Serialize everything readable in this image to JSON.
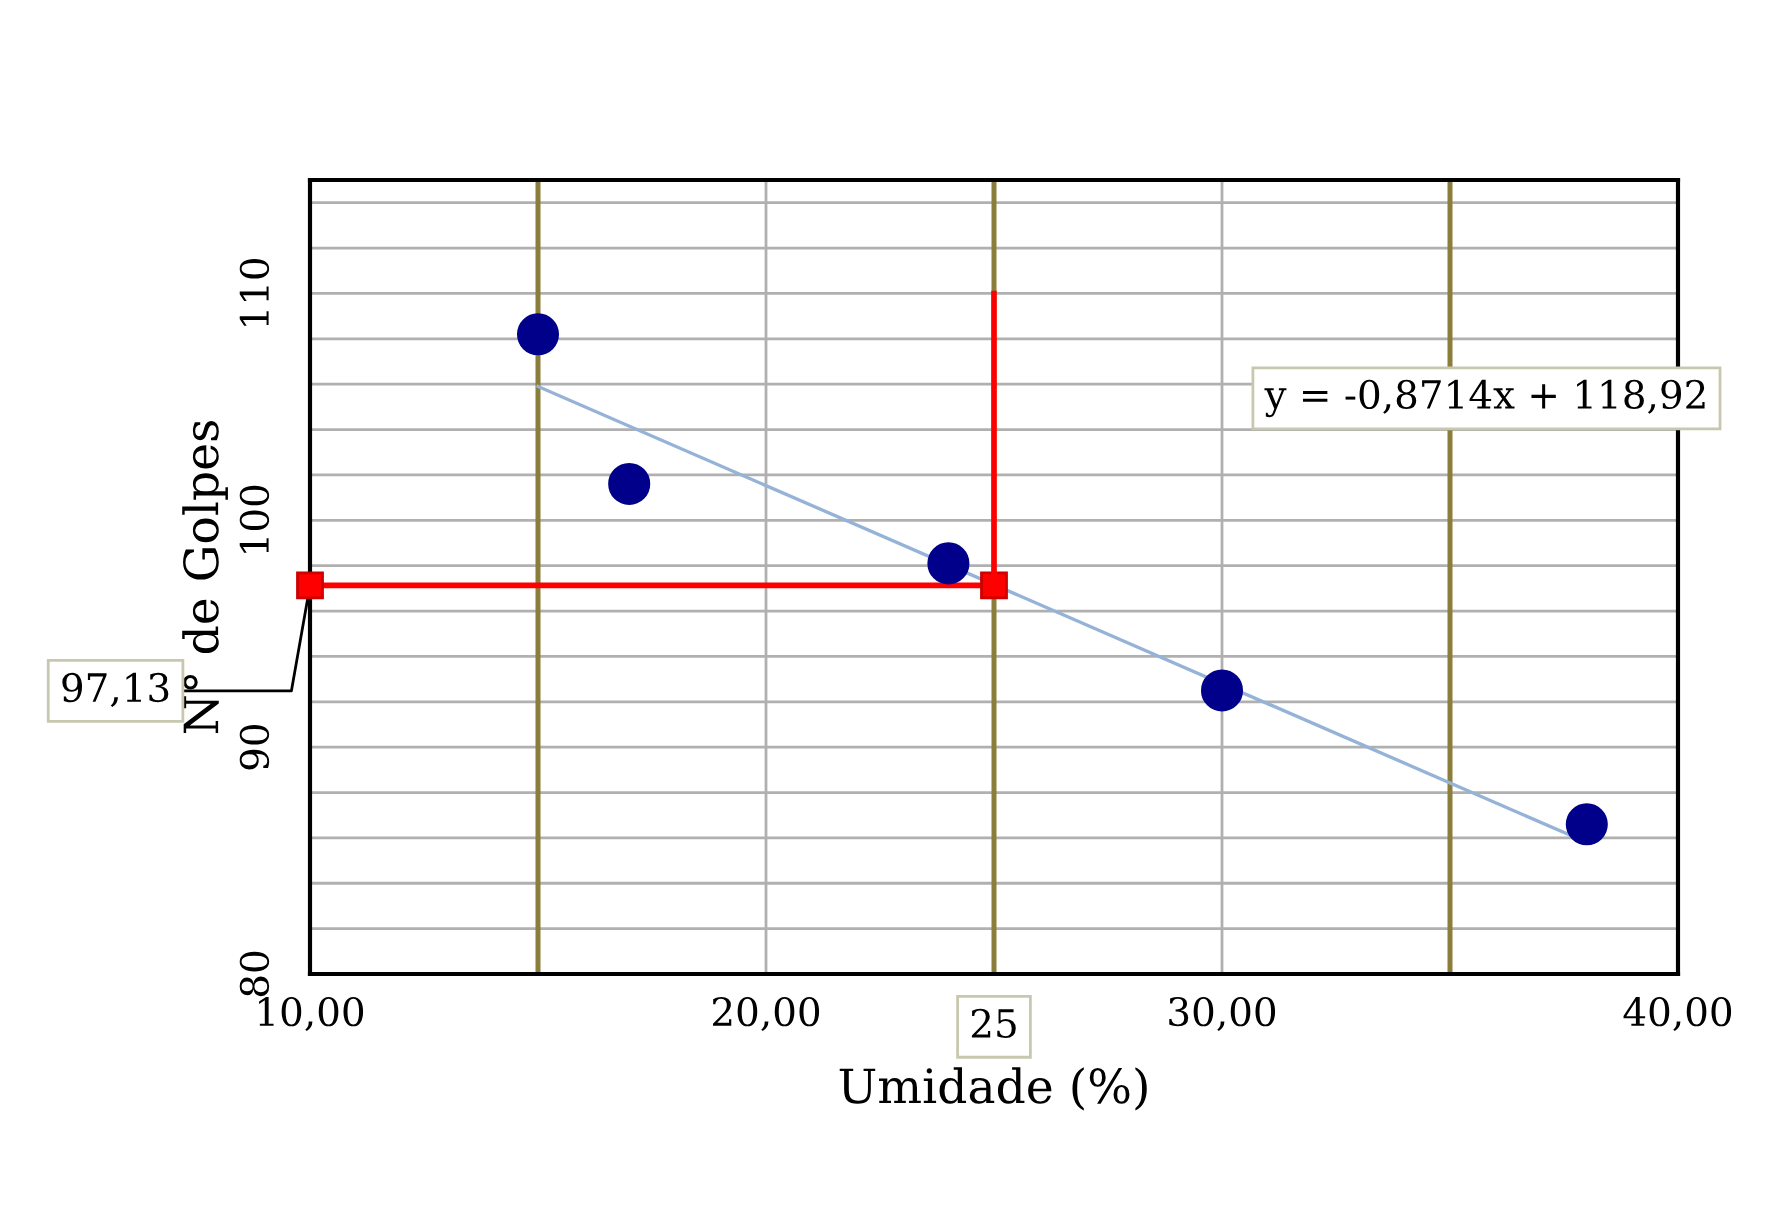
{
  "chart_data": {
    "type": "scatter",
    "xlabel": "Umidade (%)",
    "ylabel": "N° de Golpes",
    "xlim": [
      10,
      40
    ],
    "ylim": [
      80,
      115
    ],
    "xticks": [
      {
        "value": 10,
        "label": "10,00"
      },
      {
        "value": 20,
        "label": "20,00"
      },
      {
        "value": 30,
        "label": "30,00"
      },
      {
        "value": 40,
        "label": "40,00"
      }
    ],
    "yticks": [
      80,
      {
        "value": 82,
        "label": null
      },
      {
        "value": 84,
        "label": null
      },
      {
        "value": 86,
        "label": null
      },
      {
        "value": 88,
        "label": null
      },
      90,
      {
        "value": 92,
        "label": null
      },
      {
        "value": 94,
        "label": null
      },
      {
        "value": 96,
        "label": null
      },
      {
        "value": 98,
        "label": null
      },
      100,
      {
        "value": 102,
        "label": null
      },
      {
        "value": 104,
        "label": null
      },
      {
        "value": 106,
        "label": null
      },
      {
        "value": 108,
        "label": null
      },
      110,
      {
        "value": 112,
        "label": null
      },
      {
        "value": 114,
        "label": null
      }
    ],
    "grid": true,
    "ref_lines": [
      {
        "axis": "x",
        "value": 15,
        "color": "#8b7d3a"
      },
      {
        "axis": "x",
        "value": 25,
        "color": "#8b7d3a"
      },
      {
        "axis": "x",
        "value": 35,
        "color": "#8b7d3a"
      }
    ],
    "series": [
      {
        "color": "#00008b",
        "marker": "circle",
        "x": [
          15,
          17,
          24,
          30,
          38
        ],
        "values": [
          108.2,
          101.6,
          98.1,
          92.5,
          86.6
        ]
      },
      {
        "type": "line",
        "color": "#95b3d7",
        "marker": "none",
        "x": [
          15,
          38
        ],
        "values": [
          105.9,
          85.8
        ]
      },
      {
        "type": "line",
        "color": "#ff0000",
        "marker": "square",
        "x": [
          10,
          25
        ],
        "values": [
          97.13,
          97.13
        ]
      },
      {
        "type": "line",
        "color": "#ff0000",
        "marker": "none",
        "x": [
          25,
          25
        ],
        "values": [
          97.13,
          110
        ]
      }
    ],
    "annotations": [
      "y = -0,8714x + 118,92",
      {
        "text": "97,13",
        "x": 10,
        "y": 97.13
      },
      {
        "text": "25",
        "x": 25,
        "y": 80
      }
    ]
  }
}
